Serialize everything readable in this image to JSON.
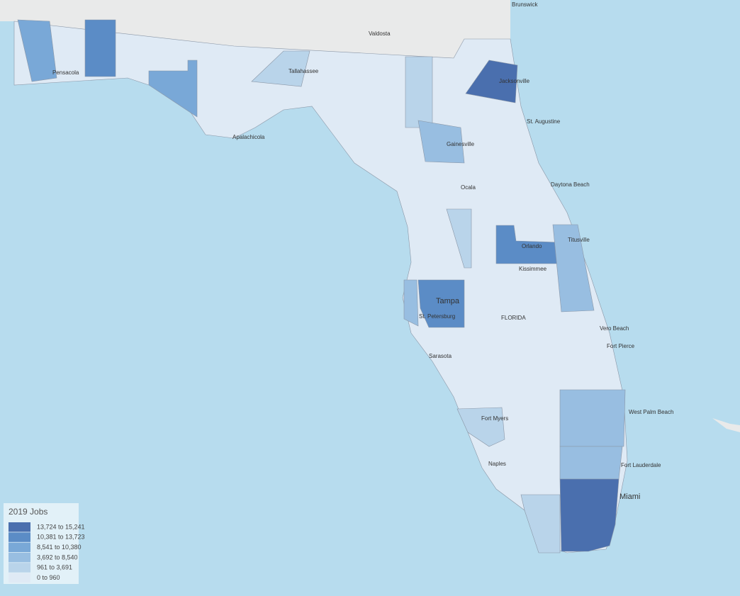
{
  "legend": {
    "title": "2019 Jobs",
    "items": [
      {
        "label": "13,724 to 15,241",
        "color": "#4a6fae"
      },
      {
        "label": "10,381 to 13,723",
        "color": "#5b8cc6"
      },
      {
        "label": "8,541 to 10,380",
        "color": "#79a8d7"
      },
      {
        "label": "3,692 to 8,540",
        "color": "#98bee1"
      },
      {
        "label": "961 to 3,691",
        "color": "#b9d4ea"
      },
      {
        "label": "0 to 960",
        "color": "#dfeaf5"
      }
    ]
  },
  "cities": [
    "Brunswick",
    "Valdosta",
    "Pensacola",
    "Tallahassee",
    "Jacksonville",
    "St. Augustine",
    "Apalachicola",
    "Gainesville",
    "Daytona Beach",
    "Ocala",
    "Titusville",
    "Orlando",
    "Kissimmee",
    "Tampa",
    "St. Petersburg",
    "FLORIDA",
    "Vero Beach",
    "Fort Pierce",
    "Sarasota",
    "West Palm Beach",
    "Fort Myers",
    "Fort Lauderdale",
    "Naples",
    "Miami"
  ]
}
